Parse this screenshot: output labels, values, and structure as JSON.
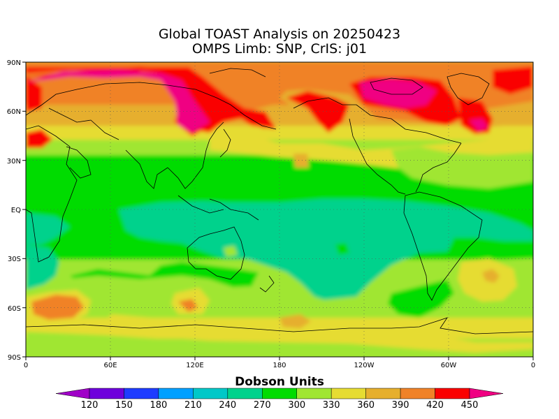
{
  "title_line1": "Global TOAST Analysis on 20250423",
  "title_line2": "OMPS Limb: SNP,  CrIS: j01",
  "lat_ticks": [
    "90N",
    "60N",
    "30N",
    "EQ",
    "30S",
    "60S",
    "90S"
  ],
  "lon_ticks": [
    "0",
    "60E",
    "120E",
    "180",
    "120W",
    "60W",
    "0"
  ],
  "colorbar": {
    "title": "Dobson Units",
    "labels": [
      "120",
      "150",
      "180",
      "210",
      "240",
      "270",
      "300",
      "330",
      "360",
      "390",
      "420",
      "450"
    ],
    "colors": [
      "#a000c8",
      "#6e00dc",
      "#1e3cff",
      "#00a0ff",
      "#00c8c8",
      "#00d28c",
      "#00dc00",
      "#a0e632",
      "#e6dc32",
      "#e6af2d",
      "#f08228",
      "#fa0000",
      "#f00082"
    ]
  },
  "chart_data": {
    "type": "heatmap",
    "title": "Global TOAST Analysis on 20250423",
    "subtitle": "OMPS Limb: SNP,  CrIS: j01",
    "variable": "Dobson Units",
    "lat_range": [
      -90,
      90
    ],
    "lon_range": [
      0,
      360
    ],
    "contour_levels": [
      120,
      150,
      180,
      210,
      240,
      270,
      300,
      330,
      360,
      390,
      420,
      450
    ]
  }
}
